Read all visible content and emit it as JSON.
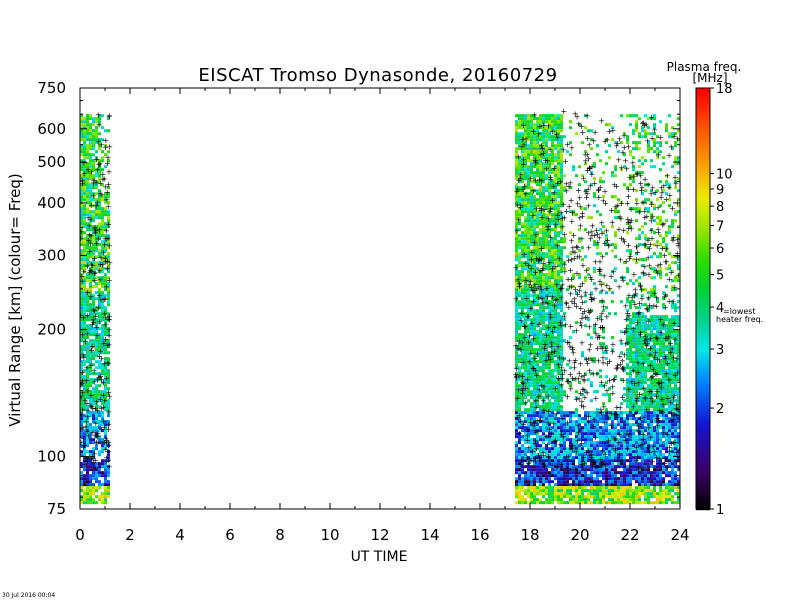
{
  "chart_data": {
    "type": "heatmap",
    "title": "EISCAT Tromso Dynasonde,  20160729",
    "xlabel": "UT TIME",
    "ylabel": "Virtual Range [km]    (colour= Freq)",
    "x_range": [
      0,
      24
    ],
    "x_ticks": [
      0,
      2,
      4,
      6,
      8,
      10,
      12,
      14,
      16,
      18,
      20,
      22,
      24
    ],
    "x_tick_labels": [
      "0",
      "2",
      "4",
      "6",
      "8",
      "10",
      "12",
      "14",
      "16",
      "18",
      "20",
      "22",
      "24"
    ],
    "y_scale": "log",
    "y_range": [
      75,
      750
    ],
    "y_ticks": [
      75,
      100,
      200,
      300,
      400,
      500,
      600,
      750
    ],
    "y_tick_labels": [
      "75",
      "100",
      "200",
      "300",
      "400",
      "500",
      "600",
      "750"
    ],
    "colorbar": {
      "title": "Plasma freq.",
      "unit": "[MHz]",
      "scale": "log",
      "range": [
        1,
        18
      ],
      "ticks": [
        1,
        2,
        3,
        4,
        5,
        6,
        7,
        8,
        9,
        10,
        18
      ],
      "tick_labels": [
        "1",
        "2",
        "3",
        "4",
        "5",
        "6",
        "7",
        "8",
        "9",
        "10",
        "18"
      ],
      "annotation": "4=lowest heater freq.",
      "colors": [
        "#000000",
        "#3a0060",
        "#1010c8",
        "#0080ff",
        "#00e0e0",
        "#00c8a0",
        "#00d000",
        "#80e000",
        "#e0e000",
        "#ff8000",
        "#ff0000"
      ]
    },
    "data_blocks": [
      {
        "x_start": 0.0,
        "x_end": 1.2,
        "y_top": 650,
        "y_bottom": 78,
        "dominant_freq_MHz": 3.2
      },
      {
        "x_start": 17.4,
        "x_end": 24.0,
        "y_top": 650,
        "y_bottom": 78,
        "dominant_freq_MHz": 3.5
      }
    ],
    "no_data_interval": [
      1.2,
      17.4
    ],
    "marker": "+ (black)"
  },
  "footer_text": "30 Jul 2016 00:04"
}
